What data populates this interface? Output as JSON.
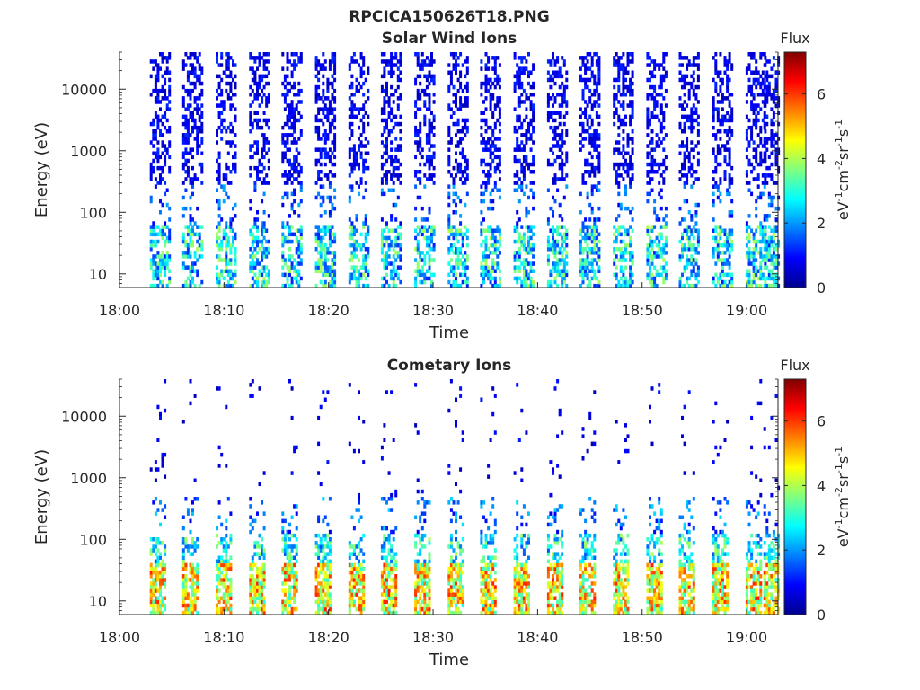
{
  "figure": {
    "title": "RPCICA150626T18.PNG"
  },
  "colorbar": {
    "label_html": "eV⁻¹cm⁻²sr⁻¹s⁻¹",
    "label_base": "eV",
    "label_parts": [
      "eV",
      "-1",
      "cm",
      "-2",
      "sr",
      "-1",
      "s",
      "-1"
    ],
    "header": "Flux",
    "range": [
      0,
      7.3
    ],
    "ticks": [
      0,
      2,
      4,
      6
    ],
    "colormap": "jet"
  },
  "chart_data": [
    {
      "type": "heatmap",
      "title": "Solar Wind Ions",
      "xlabel": "Time",
      "ylabel": "Energy (eV)",
      "x_scale": "time",
      "y_scale": "log",
      "xlim": [
        "18:00",
        "19:03"
      ],
      "ylim": [
        6,
        40000
      ],
      "xticks": [
        "18:00",
        "18:10",
        "18:20",
        "18:30",
        "18:40",
        "18:50",
        "19:00"
      ],
      "yticks": [
        "10",
        "100",
        "1000",
        "10000"
      ],
      "colorbar": {
        "label": "Flux",
        "units": "eV-1cm-2sr-1s-1",
        "range": [
          0,
          7.3
        ]
      },
      "description_series": {
        "name": "scan_times_min",
        "values": [
          3.5,
          6.6,
          9.8,
          13.0,
          16.1,
          19.3,
          22.5,
          25.6,
          28.8,
          32.0,
          35.1,
          38.3,
          41.5,
          44.6,
          47.8,
          51.0,
          54.1,
          57.3,
          60.5,
          62.2
        ]
      },
      "pattern": "solar_wind"
    },
    {
      "type": "heatmap",
      "title": "Cometary Ions",
      "xlabel": "Time",
      "ylabel": "Energy (eV)",
      "x_scale": "time",
      "y_scale": "log",
      "xlim": [
        "18:00",
        "19:03"
      ],
      "ylim": [
        6,
        40000
      ],
      "xticks": [
        "18:00",
        "18:10",
        "18:20",
        "18:30",
        "18:40",
        "18:50",
        "19:00"
      ],
      "yticks": [
        "10",
        "100",
        "1000",
        "10000"
      ],
      "colorbar": {
        "label": "Flux",
        "units": "eV-1cm-2sr-1s-1",
        "range": [
          0,
          7.3
        ]
      },
      "description_series": {
        "name": "scan_times_min",
        "values": [
          3.5,
          6.6,
          9.8,
          13.0,
          16.1,
          19.3,
          22.5,
          25.6,
          28.8,
          32.0,
          35.1,
          38.3,
          41.5,
          44.6,
          47.8,
          51.0,
          54.1,
          57.3,
          60.5,
          62.2
        ]
      },
      "pattern": "cometary"
    }
  ]
}
